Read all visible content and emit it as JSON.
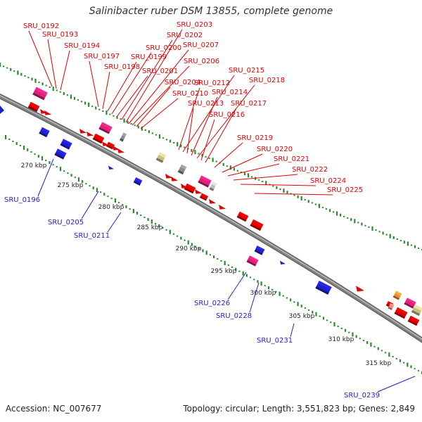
{
  "title": "Salinibacter ruber DSM 13855, complete genome",
  "footer": {
    "accession": "Accession: NC_007677",
    "topology": "Topology: circular; Length: 3,551,823 bp; Genes: 2,849"
  },
  "colors": {
    "forward": "#e00000",
    "reverse": "#1f1fcc",
    "rna": "#e0207a",
    "other": "#8a8a8a",
    "pseudo": "#c8bf85",
    "backbone": "#7f7f7f",
    "gc_track": "#2a8a2a"
  },
  "ticks": [
    "270 kbp",
    "275 kbp",
    "280 kbp",
    "285 kbp",
    "290 kbp",
    "295 kbp",
    "300 kbp",
    "305 kbp",
    "310 kbp",
    "315 kbp"
  ],
  "forward_labels": [
    "SRU_0192",
    "SRU_0193",
    "SRU_0194",
    "SRU_0197",
    "SRU_0198",
    "SRU_0199",
    "SRU_0200",
    "SRU_0201",
    "SRU_0202",
    "SRU_0203",
    "SRU_0204",
    "SRU_0206",
    "SRU_0207",
    "SRU_0210",
    "SRU_0212",
    "SRU_0213",
    "SRU_0214",
    "SRU_0215",
    "SRU_0216",
    "SRU_0217",
    "SRU_0218",
    "SRU_0219",
    "SRU_0220",
    "SRU_0221",
    "SRU_0222",
    "SRU_0224",
    "SRU_0225"
  ],
  "reverse_labels": [
    "SRU_0196",
    "SRU_0205",
    "SRU_0211",
    "SRU_0226",
    "SRU_0228",
    "SRU_0231",
    "SRU_0239"
  ]
}
